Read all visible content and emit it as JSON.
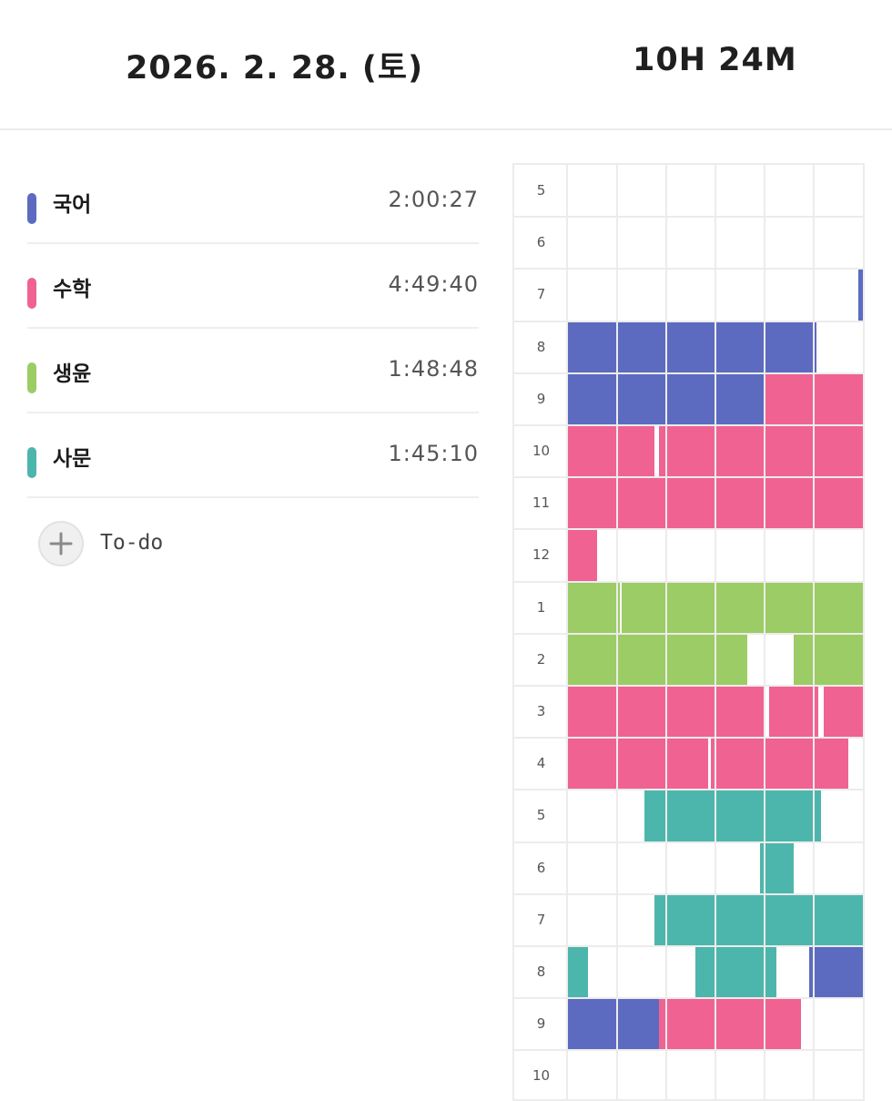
{
  "header": {
    "date": "2026. 2. 28. (토)",
    "total": "10H 24M"
  },
  "subjects": [
    {
      "name": "국어",
      "time": "2:00:27",
      "color": "#5c6bc0"
    },
    {
      "name": "수학",
      "time": "4:49:40",
      "color": "#f06292"
    },
    {
      "name": "생윤",
      "time": "1:48:48",
      "color": "#9ccc65"
    },
    {
      "name": "사문",
      "time": "1:45:10",
      "color": "#4db6ac"
    }
  ],
  "todo": {
    "label": "To-do",
    "icon": "plus-icon"
  },
  "timetable": {
    "hours": [
      "5",
      "6",
      "7",
      "8",
      "9",
      "10",
      "11",
      "12",
      "1",
      "2",
      "3",
      "4",
      "5",
      "6",
      "7",
      "8",
      "9",
      "10"
    ],
    "minutes_per_cell": 10,
    "cells_per_hour": 6,
    "sessions": [
      {
        "subject": 0,
        "hour": 2,
        "start": 59,
        "end": 60
      },
      {
        "subject": 0,
        "hour": 3,
        "start": 0,
        "end": 50.5
      },
      {
        "subject": 0,
        "hour": 4,
        "start": 0,
        "end": 40
      },
      {
        "subject": 1,
        "hour": 4,
        "start": 40,
        "end": 60
      },
      {
        "subject": 1,
        "hour": 5,
        "start": 0,
        "end": 17.5
      },
      {
        "subject": 1,
        "hour": 5,
        "start": 18.5,
        "end": 60
      },
      {
        "subject": 1,
        "hour": 6,
        "start": 0,
        "end": 60
      },
      {
        "subject": 1,
        "hour": 7,
        "start": 0,
        "end": 6
      },
      {
        "subject": 2,
        "hour": 8,
        "start": 0,
        "end": 10.5
      },
      {
        "subject": 2,
        "hour": 8,
        "start": 11,
        "end": 60
      },
      {
        "subject": 2,
        "hour": 9,
        "start": 0,
        "end": 36.5
      },
      {
        "subject": 2,
        "hour": 9,
        "start": 46,
        "end": 60
      },
      {
        "subject": 1,
        "hour": 10,
        "start": 0,
        "end": 40
      },
      {
        "subject": 1,
        "hour": 10,
        "start": 41,
        "end": 51
      },
      {
        "subject": 1,
        "hour": 10,
        "start": 52,
        "end": 60
      },
      {
        "subject": 1,
        "hour": 11,
        "start": 0,
        "end": 28.5
      },
      {
        "subject": 1,
        "hour": 11,
        "start": 29,
        "end": 57
      },
      {
        "subject": 3,
        "hour": 12,
        "start": 15.5,
        "end": 51.5
      },
      {
        "subject": 3,
        "hour": 13,
        "start": 39,
        "end": 46
      },
      {
        "subject": 3,
        "hour": 14,
        "start": 17.5,
        "end": 60
      },
      {
        "subject": 3,
        "hour": 15,
        "start": 0,
        "end": 4
      },
      {
        "subject": 3,
        "hour": 15,
        "start": 26,
        "end": 42.5
      },
      {
        "subject": 0,
        "hour": 15,
        "start": 49,
        "end": 60
      },
      {
        "subject": 0,
        "hour": 16,
        "start": 0,
        "end": 18.5
      },
      {
        "subject": 1,
        "hour": 16,
        "start": 18.5,
        "end": 47.5
      }
    ]
  }
}
